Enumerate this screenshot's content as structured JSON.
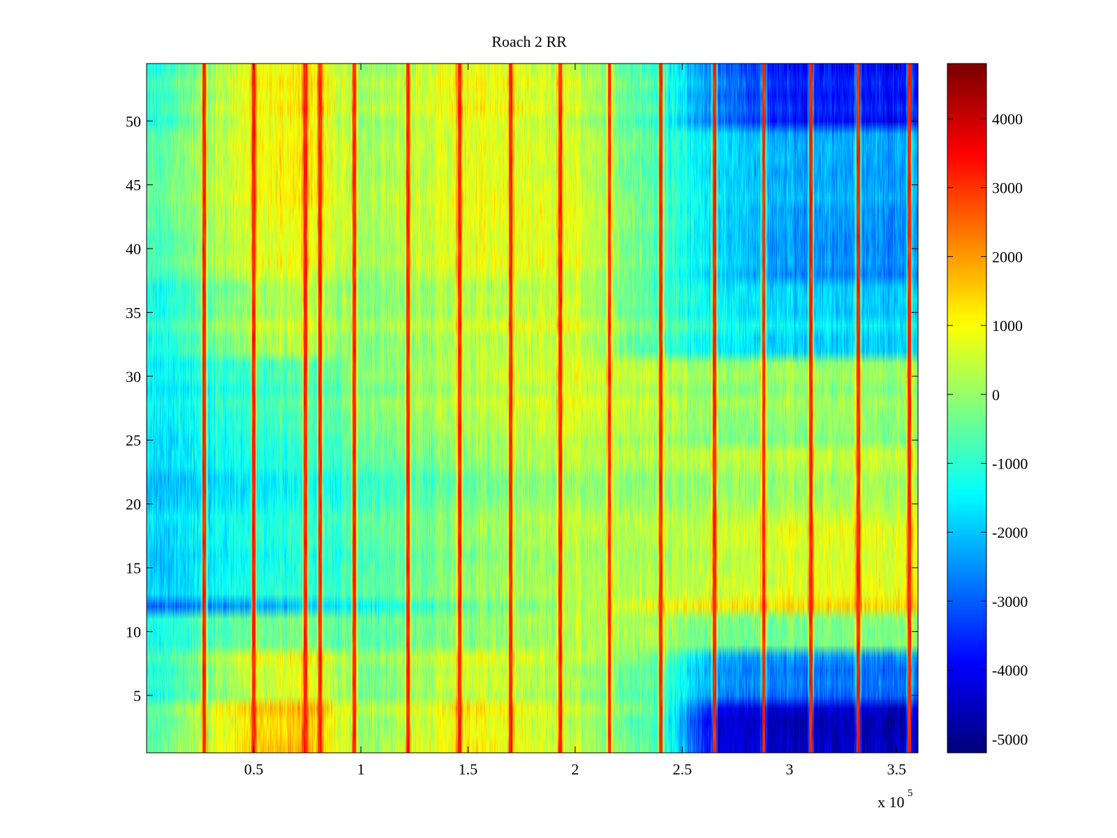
{
  "chart_data": {
    "type": "heatmap",
    "title": "Roach 2 RR",
    "xlabel": "",
    "ylabel": "",
    "x_multiplier_label": "x 10",
    "x_multiplier_exponent": "5",
    "xlim": [
      0,
      3.6
    ],
    "ylim": [
      0.5,
      54.5
    ],
    "x_ticks": [
      0.5,
      1,
      1.5,
      2,
      2.5,
      3,
      3.5
    ],
    "x_tick_labels": [
      "0.5",
      "1",
      "1.5",
      "2",
      "2.5",
      "3",
      "3.5"
    ],
    "y_ticks": [
      5,
      10,
      15,
      20,
      25,
      30,
      35,
      40,
      45,
      50
    ],
    "y_tick_labels": [
      "5",
      "10",
      "15",
      "20",
      "25",
      "30",
      "35",
      "40",
      "45",
      "50"
    ],
    "rows": 54,
    "colorbar": {
      "colormap": "jet",
      "clim": [
        -5200,
        4800
      ],
      "ticks": [
        -5000,
        -4000,
        -3000,
        -2000,
        -1000,
        0,
        1000,
        2000,
        3000,
        4000
      ],
      "tick_labels": [
        "-5000",
        "-4000",
        "-3000",
        "-2000",
        "-1000",
        "0",
        "1000",
        "2000",
        "3000",
        "4000"
      ]
    },
    "grid": false,
    "vertical_streaks_x": [
      0.27,
      0.5,
      0.74,
      0.81,
      0.97,
      1.22,
      1.46,
      1.7,
      1.93,
      2.16,
      2.4,
      2.65,
      2.88,
      3.1,
      3.32,
      3.56
    ],
    "column_profile_x": [
      0,
      0.5,
      0.8,
      1.0,
      1.5,
      2.0,
      2.4,
      2.65,
      3.0,
      3.6
    ],
    "row_profiles": [
      {
        "rows": [
          1,
          4
        ],
        "values": [
          -700,
          1500,
          1700,
          0,
          1200,
          400,
          -800,
          -4200,
          -4500,
          -4600
        ]
      },
      {
        "rows": [
          5,
          8
        ],
        "values": [
          -1200,
          600,
          900,
          -300,
          700,
          200,
          -600,
          -2400,
          -2700,
          -2800
        ]
      },
      {
        "rows": [
          9,
          11
        ],
        "values": [
          -1300,
          -300,
          -300,
          -600,
          0,
          300,
          200,
          -300,
          -200,
          -100
        ]
      },
      {
        "rows": [
          12,
          12
        ],
        "values": [
          -3000,
          -2300,
          -1800,
          -1400,
          -500,
          200,
          1100,
          1300,
          1400,
          1500
        ]
      },
      {
        "rows": [
          13,
          18
        ],
        "values": [
          -2000,
          -1200,
          -1000,
          -700,
          0,
          300,
          300,
          500,
          800,
          900
        ]
      },
      {
        "rows": [
          19,
          24
        ],
        "values": [
          -2000,
          -1400,
          -1100,
          -800,
          -200,
          200,
          100,
          200,
          300,
          400
        ]
      },
      {
        "rows": [
          25,
          31
        ],
        "values": [
          -1700,
          -900,
          -700,
          -300,
          300,
          600,
          300,
          -100,
          0,
          0
        ]
      },
      {
        "rows": [
          32,
          37
        ],
        "values": [
          -1300,
          300,
          500,
          -100,
          500,
          600,
          -700,
          -1300,
          -1700,
          -1800
        ]
      },
      {
        "rows": [
          38,
          43
        ],
        "values": [
          -1000,
          600,
          800,
          -100,
          700,
          600,
          -900,
          -1900,
          -2600,
          -2700
        ]
      },
      {
        "rows": [
          44,
          49
        ],
        "values": [
          -800,
          900,
          1100,
          0,
          800,
          500,
          -900,
          -1800,
          -2300,
          -2400
        ]
      },
      {
        "rows": [
          50,
          54
        ],
        "values": [
          -1200,
          1000,
          1300,
          0,
          1100,
          500,
          -1000,
          -2700,
          -3700,
          -3800
        ]
      }
    ]
  }
}
